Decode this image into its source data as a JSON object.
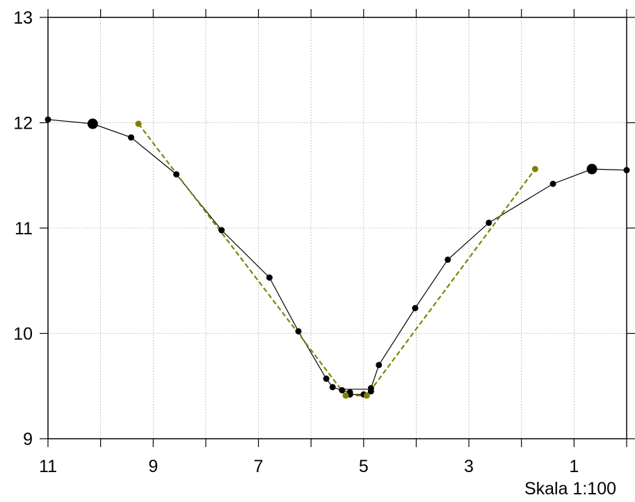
{
  "chart_data": {
    "type": "line",
    "title": "",
    "xlabel": "",
    "ylabel": "",
    "xlim": [
      11,
      0
    ],
    "ylim": [
      9,
      13
    ],
    "x_reversed": true,
    "grid": true,
    "x_ticks_labeled": [
      11,
      9,
      7,
      5,
      3,
      1
    ],
    "x_ticks": [
      11,
      10,
      9,
      8,
      7,
      6,
      5,
      4,
      3,
      2,
      1,
      0
    ],
    "y_ticks": [
      9,
      10,
      11,
      12,
      13
    ],
    "annotation": "Skala 1:100",
    "colors": {
      "profile": "#000000",
      "fit": "#808000",
      "grid": "#b3b3b3"
    },
    "series": [
      {
        "style": "solid-black-markers",
        "points": [
          {
            "x": 11.0,
            "y": 12.03
          },
          {
            "x": 10.15,
            "y": 11.99,
            "large": true
          },
          {
            "x": 9.42,
            "y": 11.86
          },
          {
            "x": 8.56,
            "y": 11.51
          },
          {
            "x": 7.7,
            "y": 10.98
          },
          {
            "x": 6.79,
            "y": 10.53
          },
          {
            "x": 6.24,
            "y": 10.02
          },
          {
            "x": 5.71,
            "y": 9.57
          },
          {
            "x": 5.59,
            "y": 9.49
          },
          {
            "x": 5.41,
            "y": 9.46
          },
          {
            "x": 5.26,
            "y": 9.44
          },
          {
            "x": 5.26,
            "y": 9.42
          },
          {
            "x": 5.0,
            "y": 9.42
          },
          {
            "x": 4.86,
            "y": 9.45
          },
          {
            "x": 4.86,
            "y": 9.48
          },
          {
            "x": 4.71,
            "y": 9.7
          },
          {
            "x": 4.02,
            "y": 10.24
          },
          {
            "x": 3.4,
            "y": 10.7
          },
          {
            "x": 2.62,
            "y": 11.05
          },
          {
            "x": 1.4,
            "y": 11.42
          },
          {
            "x": 0.66,
            "y": 11.56,
            "large": true
          },
          {
            "x": 0.0,
            "y": 11.55
          }
        ],
        "closing_segments": [
          [
            {
              "x": 5.41,
              "y": 9.47
            },
            {
              "x": 4.86,
              "y": 9.47
            }
          ]
        ]
      },
      {
        "style": "dashed-olive-markers",
        "points": [
          {
            "x": 9.28,
            "y": 11.99
          },
          {
            "x": 5.34,
            "y": 9.41
          },
          {
            "x": 4.94,
            "y": 9.41
          },
          {
            "x": 1.74,
            "y": 11.56
          }
        ]
      }
    ]
  }
}
